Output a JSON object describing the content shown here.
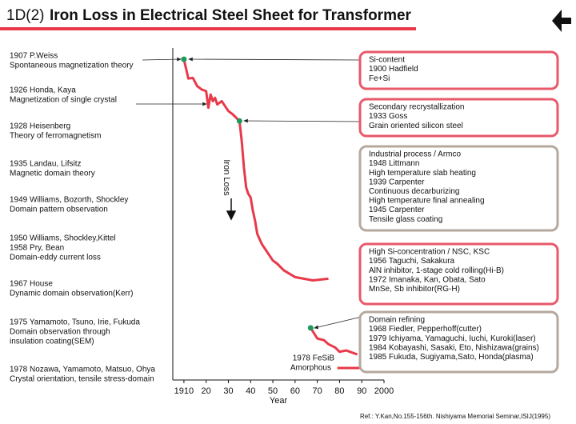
{
  "chart_data": {
    "type": "line",
    "section": "1D(2)",
    "title": "Iron Loss in Electrical Steel Sheet for Transformer",
    "xlabel": "Year",
    "ylabel": "Iron Loss",
    "xlim": [
      1905,
      2000
    ],
    "xticks": [
      1910,
      {
        "value": 1920,
        "label": "20"
      },
      {
        "value": 1930,
        "label": "30"
      },
      {
        "value": 1940,
        "label": "40"
      },
      {
        "value": 1950,
        "label": "50"
      },
      {
        "value": 1960,
        "label": "60"
      },
      {
        "value": 1970,
        "label": "70"
      },
      {
        "value": 1980,
        "label": "80"
      },
      {
        "value": 1990,
        "label": "90"
      },
      2000
    ],
    "ylim": [
      0,
      100
    ],
    "x": [
      1910,
      1912,
      1914,
      1916,
      1918,
      1920,
      1921,
      1922,
      1923,
      1924,
      1925,
      1927,
      1928,
      1930,
      1932,
      1935,
      1936,
      1937,
      1938,
      1939,
      1940,
      1941,
      1942,
      1943,
      1945,
      1946,
      1948,
      1950,
      1952,
      1955,
      1960,
      1968,
      1975,
      null,
      1967,
      1970,
      1973,
      1975,
      1978,
      1980,
      1983,
      1988,
      null,
      1979,
      1992
    ],
    "series": [
      {
        "color": "#e8394a",
        "marker_color": "#1f9a5a",
        "markers": [
          0,
          15,
          34
        ],
        "values": [
          96.6,
          90.8,
          91,
          88.5,
          87.5,
          87,
          82,
          86,
          84,
          85,
          83,
          84,
          83,
          81,
          80,
          78,
          72,
          64,
          58,
          56,
          55,
          51,
          48,
          44,
          41,
          40,
          38,
          36,
          35,
          33,
          31,
          30,
          30.5,
          null,
          15.7,
          12.5,
          12,
          10.8,
          9.8,
          8.5,
          8.9,
          7.7,
          null,
          3.6,
          3.6
        ]
      }
    ],
    "left_notes": [
      [
        "1907 P.Weiss",
        "Spontaneous magnetization theory"
      ],
      [
        "1926 Honda, Kaya",
        "Magnetization of single crystal"
      ],
      [
        "1928 Heisenberg",
        "Theory of ferromagnetism"
      ],
      [
        "1935 Landau, Lifsitz",
        "Magnetic domain theory"
      ],
      [
        "1949 Williams, Bozorth, Shockley",
        "Domain pattern observation"
      ],
      [
        "1950 Williams, Shockley,Kittel",
        "1958 Pry, Bean",
        "Domain-eddy current loss"
      ],
      [
        "1967 House",
        "Dynamic domain observation(Kerr)"
      ],
      [
        "1975 Yamamoto, Tsuno, Irie, Fukuda",
        "Domain observation through",
        "insulation coating(SEM)"
      ],
      [
        "1978 Nozawa, Yamamoto, Matsuo, Ohya",
        "Crystal orientation, tensile stress-domain"
      ]
    ],
    "boxes": [
      {
        "color": "#e8596a",
        "lines": [
          "Si-content",
          "1900 Hadfield",
          "Fe+Si"
        ]
      },
      {
        "color": "#e8596a",
        "lines": [
          "Secondary recrystallization",
          "1933 Goss",
          "Grain oriented silicon steel"
        ]
      },
      {
        "color": "#b5a89e",
        "lines": [
          "Industrial process / Armco",
          "1948 Littmann",
          "High temperature slab heating",
          "1939 Carpenter",
          "Continuous decarburizing",
          "High temperature final annealing",
          "1945 Carpenter",
          "Tensile glass coating"
        ]
      },
      {
        "color": "#e8596a",
        "lines": [
          "High Si-concentration / NSC, KSC",
          "1956 Taguchi, Sakakura",
          "AlN inhibitor, 1-stage cold rolling(Hi-B)",
          "1972 Imanaka, Kan, Obata, Sato",
          "MnSe, Sb inhibitor(RG-H)"
        ]
      },
      {
        "color": "#b5a89e",
        "lines": [
          "Domain refining",
          "1968 Fiedler, Pepperhoff(cutter)",
          "1979 Ichiyama, Yamaguchi, Iuchi, Kuroki(laser)",
          "1984 Kobayashi, Sasaki, Eto, Nishizawa(grains)",
          "1985 Fukuda, Sugiyama,Sato, Honda(plasma)"
        ]
      }
    ],
    "amorphous_label": [
      "1978 FeSiB",
      "Amorphous"
    ],
    "reference": "Ref.: Y.Kan,No.155-156th. Nishiyama Memorial Seminar,ISIJ(1995)"
  }
}
